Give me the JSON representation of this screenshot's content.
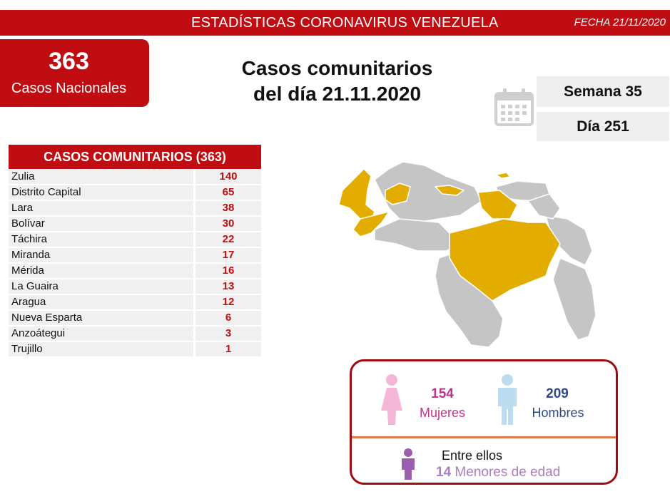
{
  "header": {
    "title": "ESTADÍSTICAS CORONAVIRUS VENEZUELA",
    "fecha": "FECHA 21/11/2020"
  },
  "national": {
    "count": "363",
    "label": "Casos Nacionales"
  },
  "headline": {
    "line1": "Casos comunitarios",
    "line2": "del día 21.11.2020"
  },
  "calendar": {
    "icon": "calendar-icon",
    "week": "Semana 35",
    "day": "Día 251"
  },
  "community_table": {
    "header": "CASOS COMUNITARIOS (363)",
    "rows": [
      {
        "state": "Zulia",
        "value": "140"
      },
      {
        "state": "Distrito Capital",
        "value": "65"
      },
      {
        "state": "Lara",
        "value": "38"
      },
      {
        "state": "Bolívar",
        "value": "30"
      },
      {
        "state": "Táchira",
        "value": "22"
      },
      {
        "state": "Miranda",
        "value": "17"
      },
      {
        "state": "Mérida",
        "value": "16"
      },
      {
        "state": "La Guaira",
        "value": "13"
      },
      {
        "state": "Aragua",
        "value": "12"
      },
      {
        "state": "Nueva Esparta",
        "value": "6"
      },
      {
        "state": "Anzoátegui",
        "value": "3"
      },
      {
        "state": "Trujillo",
        "value": "1"
      }
    ]
  },
  "map": {
    "highlight_color": "#e3ad00",
    "base_color": "#c5c5c5",
    "highlighted_states": [
      "Zulia",
      "Distrito Capital",
      "Lara",
      "Bolívar",
      "Táchira",
      "Miranda",
      "Mérida",
      "La Guaira",
      "Aragua",
      "Nueva Esparta",
      "Anzoátegui",
      "Trujillo"
    ]
  },
  "gender": {
    "female_count": "154",
    "female_label": "Mujeres",
    "male_count": "209",
    "male_label": "Hombres",
    "among_label": "Entre ellos",
    "minors_count": "14",
    "minors_label": "Menores de edad",
    "female_color": "#f4b6d6",
    "male_color": "#bcdcf0",
    "child_color": "#9b5fad"
  },
  "colors": {
    "brand_red": "#c00d11"
  }
}
